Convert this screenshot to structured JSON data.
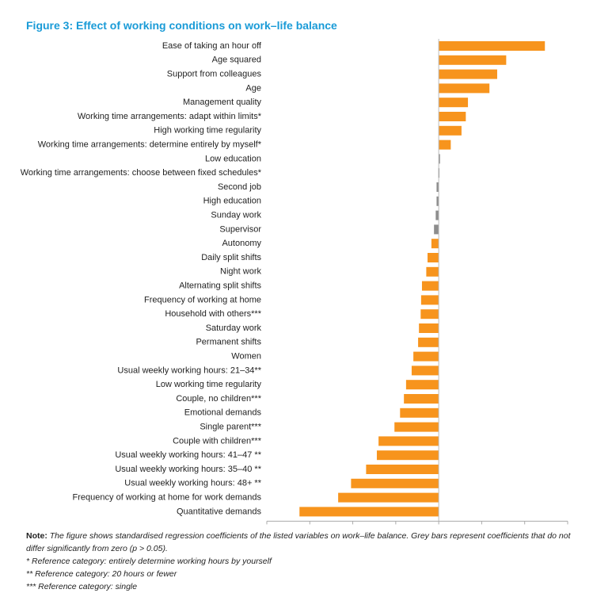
{
  "chart_data": {
    "type": "hbar",
    "title": "Figure 3: Effect of working conditions on work–life balance",
    "categories": [
      "Ease of taking an hour off",
      "Age squared",
      "Support from colleagues",
      "Age",
      "Management quality",
      "Working time arrangements: adapt within limits*",
      "High working time regularity",
      "Working time arrangements: determine entirely by myself*",
      "Low education",
      "Working time arrangements: choose between fixed schedules*",
      "Second job",
      "High education",
      "Sunday work",
      "Supervisor",
      "Autonomy",
      "Daily split shifts",
      "Night work",
      "Alternating split shifts",
      "Frequency of working at home",
      "Household with others***",
      "Saturday work",
      "Permanent shifts",
      "Women",
      "Usual weekly working hours: 21–34**",
      "Low working time regularity",
      "Couple, no children***",
      "Emotional demands",
      "Single parent***",
      "Couple with children***",
      "Usual weekly working hours: 41–47 **",
      "Usual weekly working hours: 35–40 **",
      "Usual weekly working hours: 48+ **",
      "Frequency of working at home for work demands",
      "Quantitative demands"
    ],
    "values": [
      0.247,
      0.157,
      0.136,
      0.118,
      0.068,
      0.063,
      0.053,
      0.028,
      0.003,
      -0.001,
      -0.005,
      -0.005,
      -0.007,
      -0.011,
      -0.017,
      -0.026,
      -0.029,
      -0.039,
      -0.041,
      -0.042,
      -0.046,
      -0.048,
      -0.059,
      -0.063,
      -0.076,
      -0.081,
      -0.09,
      -0.103,
      -0.14,
      -0.144,
      -0.169,
      -0.204,
      -0.234,
      -0.324
    ],
    "colors": [
      "#f7941d",
      "#f7941d",
      "#f7941d",
      "#f7941d",
      "#f7941d",
      "#f7941d",
      "#f7941d",
      "#f7941d",
      "#8c8c8c",
      "#8c8c8c",
      "#8c8c8c",
      "#8c8c8c",
      "#8c8c8c",
      "#8c8c8c",
      "#f7941d",
      "#f7941d",
      "#f7941d",
      "#f7941d",
      "#f7941d",
      "#f7941d",
      "#f7941d",
      "#f7941d",
      "#f7941d",
      "#f7941d",
      "#f7941d",
      "#f7941d",
      "#f7941d",
      "#f7941d",
      "#f7941d",
      "#f7941d",
      "#f7941d",
      "#f7941d",
      "#f7941d",
      "#f7941d"
    ],
    "xlim": [
      -0.4,
      0.3
    ],
    "xticks": [
      -0.4,
      -0.3,
      -0.2,
      -0.1,
      0,
      0.1,
      0.2,
      0.3
    ],
    "note_label": "Note:",
    "note": "The figure shows standardised regression coefficients of the listed variables on work–life balance. Grey bars represent coefficients that do not differ significantly from zero (p > 0.05).",
    "footnotes": [
      "* Reference category: entirely determine working hours by yourself",
      "** Reference category: 20 hours or fewer",
      "*** Reference category: single"
    ]
  }
}
